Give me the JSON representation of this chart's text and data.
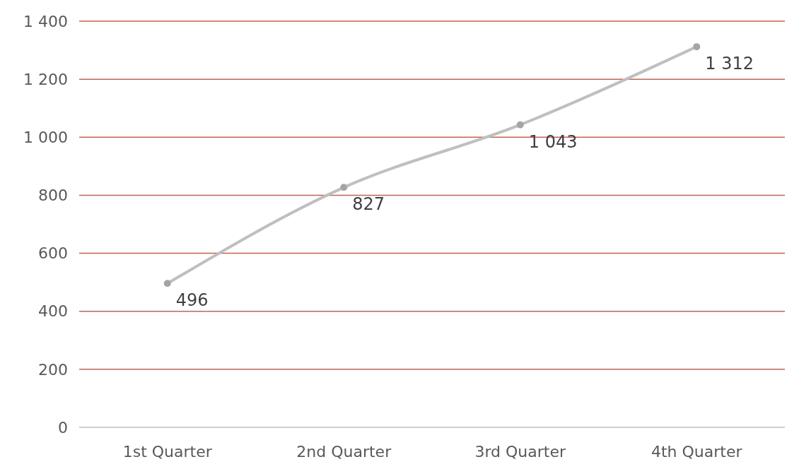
{
  "chart_data": {
    "type": "line",
    "categories": [
      "1st Quarter",
      "2nd Quarter",
      "3rd Quarter",
      "4th Quarter"
    ],
    "series": [
      {
        "color": "#bfbfbf",
        "values": [
          496,
          827,
          1043,
          1312
        ],
        "value_labels": [
          "496",
          "827",
          "1 043",
          "1 312"
        ]
      }
    ],
    "ylim": [
      0,
      1400
    ],
    "yticks": [
      0,
      200,
      400,
      600,
      800,
      {
        "value": 1000,
        "label": "1 000"
      },
      {
        "value": 1200,
        "label": "1 200"
      },
      {
        "value": 1400,
        "label": "1 400"
      }
    ],
    "grid": "y",
    "marker": "circle",
    "line_style": "solid"
  }
}
